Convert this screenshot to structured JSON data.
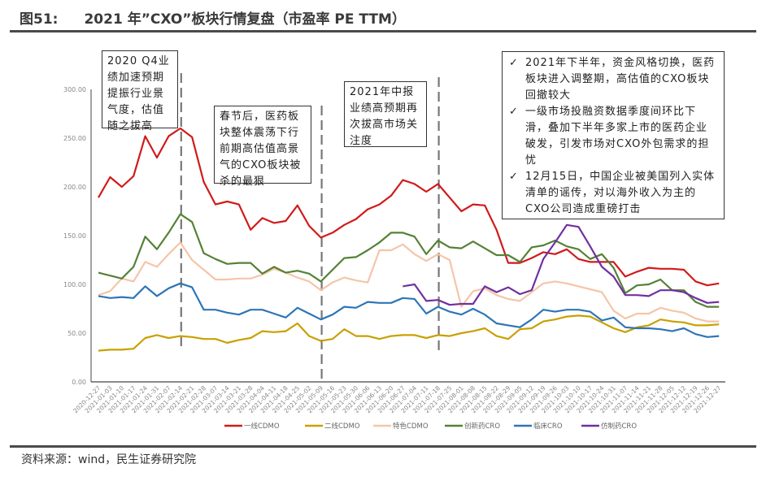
{
  "header": {
    "figure_no": "图51:",
    "title": "2021 年”CXO”板块行情复盘（市盈率 PE TTM）"
  },
  "footer": {
    "source": "资料来源：wind，民生证券研究院"
  },
  "annotations": [
    "2020 Q4业绩加速预期提振行业景气度，估值随之拔高",
    "春节后，医药板块整体震荡下行前期高估值高景气的CXO板块被杀的最狠",
    "2021年中报业绩高预期再次拔高市场关注度"
  ],
  "notes_box": {
    "check_icon": "checkmark-icon",
    "items": [
      "2021年下半年，资金风格切换，医药板块进入调整期，高估值的CXO板块回撤较大",
      "一级市场投融资数据季度间环比下滑，叠加下半年多家上市的医药企业破发，引发市场对CXO外包需求的担忧",
      "12月15日，中国企业被美国列入实体清单的谣传，对以海外收入为主的CXO公司造成重磅打击"
    ]
  },
  "chart_data": {
    "type": "line",
    "title": "",
    "xlabel": "",
    "ylabel": "",
    "ylim": [
      0,
      300
    ],
    "yticks": [
      "0.00",
      "50.00",
      "100.00",
      "150.00",
      "200.00",
      "250.00",
      "300.00"
    ],
    "grid": false,
    "legend_position": "bottom",
    "vertical_markers": [
      "2021-02-14",
      "2021-05-09",
      "2021-07-18"
    ],
    "x": [
      "2020-12-27",
      "2021-01-03",
      "2021-01-10",
      "2021-01-17",
      "2021-01-24",
      "2021-01-31",
      "2021-02-07",
      "2021-02-14",
      "2021-02-21",
      "2021-02-28",
      "2021-03-07",
      "2021-03-14",
      "2021-03-21",
      "2021-03-28",
      "2021-04-04",
      "2021-04-11",
      "2021-04-18",
      "2021-04-25",
      "2021-05-02",
      "2021-05-09",
      "2021-05-16",
      "2021-05-23",
      "2021-05-30",
      "2021-06-06",
      "2021-06-13",
      "2021-06-20",
      "2021-06-27",
      "2021-07-04",
      "2021-07-11",
      "2021-07-18",
      "2021-07-25",
      "2021-08-01",
      "2021-08-08",
      "2021-08-15",
      "2021-08-22",
      "2021-08-29",
      "2021-09-05",
      "2021-09-12",
      "2021-09-19",
      "2021-09-26",
      "2021-10-03",
      "2021-10-10",
      "2021-10-17",
      "2021-10-24",
      "2021-10-31",
      "2021-11-07",
      "2021-11-14",
      "2021-11-21",
      "2021-11-28",
      "2021-12-05",
      "2021-12-12",
      "2021-12-19",
      "2021-12-26",
      "2021-12-27"
    ],
    "series": [
      {
        "name": "一线CDMO",
        "color": "#d11a1a",
        "values": [
          189,
          210,
          200,
          211,
          252,
          230,
          252,
          260,
          251,
          205,
          182,
          185,
          182,
          156,
          168,
          163,
          165,
          181,
          160,
          148,
          153,
          161,
          167,
          177,
          182,
          191,
          207,
          203,
          195,
          203,
          189,
          175,
          182,
          181,
          156,
          122,
          122,
          127,
          133,
          131,
          136,
          126,
          123,
          123,
          123,
          108,
          113,
          117,
          116,
          116,
          115,
          103,
          99,
          101
        ]
      },
      {
        "name": "二线CDMO",
        "color": "#c9a000",
        "values": [
          32,
          33,
          33,
          34,
          45,
          48,
          45,
          47,
          46,
          44,
          44,
          40,
          43,
          45,
          52,
          51,
          52,
          60,
          47,
          42,
          44,
          54,
          47,
          47,
          44,
          47,
          48,
          48,
          45,
          48,
          47,
          50,
          52,
          55,
          47,
          44,
          54,
          55,
          62,
          64,
          67,
          68,
          67,
          61,
          55,
          51,
          56,
          58,
          64,
          62,
          61,
          58,
          58,
          59
        ]
      },
      {
        "name": "特色CDMO",
        "color": "#f5c5a8",
        "values": [
          89,
          93,
          106,
          103,
          123,
          118,
          131,
          143,
          125,
          115,
          105,
          105,
          106,
          106,
          110,
          116,
          112,
          107,
          103,
          94,
          102,
          107,
          104,
          102,
          135,
          135,
          141,
          131,
          124,
          131,
          125,
          77,
          93,
          96,
          89,
          85,
          83,
          92,
          101,
          103,
          101,
          98,
          95,
          92,
          73,
          65,
          70,
          70,
          76,
          73,
          71,
          65,
          62,
          62
        ]
      },
      {
        "name": "创新药CRO",
        "color": "#548235",
        "values": [
          112,
          109,
          106,
          118,
          149,
          136,
          153,
          172,
          164,
          132,
          126,
          121,
          122,
          122,
          111,
          118,
          112,
          114,
          111,
          103,
          115,
          127,
          128,
          135,
          143,
          153,
          153,
          149,
          131,
          145,
          138,
          137,
          144,
          137,
          130,
          130,
          123,
          138,
          140,
          145,
          139,
          136,
          126,
          131,
          117,
          91,
          99,
          100,
          105,
          94,
          94,
          82,
          77,
          77
        ]
      },
      {
        "name": "临床CRO",
        "color": "#2e75b6",
        "values": [
          88,
          86,
          87,
          86,
          98,
          88,
          96,
          101,
          97,
          74,
          74,
          71,
          69,
          74,
          74,
          70,
          66,
          76,
          70,
          64,
          69,
          77,
          76,
          82,
          81,
          81,
          86,
          85,
          70,
          77,
          72,
          69,
          75,
          69,
          60,
          58,
          56,
          64,
          74,
          72,
          74,
          74,
          72,
          63,
          66,
          56,
          55,
          55,
          54,
          52,
          55,
          49,
          46,
          47
        ]
      },
      {
        "name": "仿制药CRO",
        "color": "#7030a0",
        "values": [
          null,
          null,
          null,
          null,
          null,
          null,
          null,
          null,
          null,
          null,
          null,
          null,
          null,
          null,
          null,
          null,
          null,
          null,
          null,
          null,
          null,
          null,
          null,
          null,
          null,
          null,
          98,
          100,
          83,
          84,
          79,
          80,
          80,
          98,
          92,
          97,
          90,
          94,
          126,
          143,
          161,
          159,
          139,
          118,
          108,
          89,
          89,
          88,
          94,
          94,
          92,
          86,
          81,
          82
        ]
      }
    ]
  }
}
